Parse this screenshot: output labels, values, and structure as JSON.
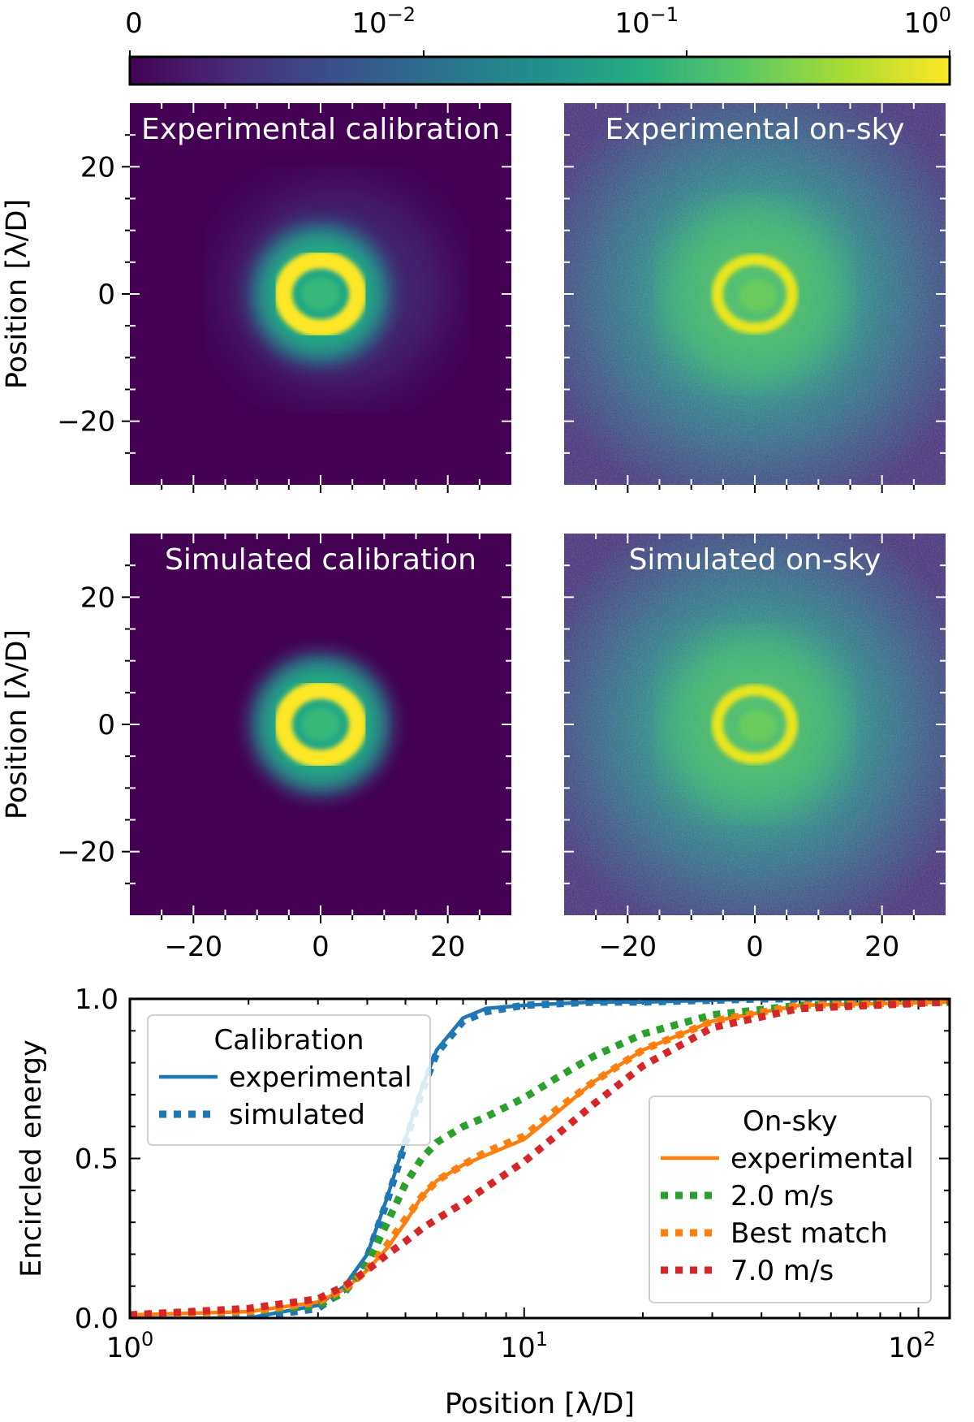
{
  "colorbar": {
    "tick_labels": [
      "0",
      "10",
      "−2",
      "10",
      "−1",
      "10",
      "0"
    ],
    "tick_values": [
      "0",
      "1e-2",
      "1e-1",
      "1e0"
    ],
    "colormap": "viridis",
    "viridis_stops": [
      "#440154",
      "#472c7a",
      "#3b518b",
      "#2c718e",
      "#21908d",
      "#27ad81",
      "#5cc863",
      "#aadc32",
      "#fde725"
    ]
  },
  "images": {
    "panels": [
      {
        "title": "Experimental calibration",
        "kind": "calibration",
        "ring_radius": 6,
        "halo_level": 0.0,
        "asymmetry": true
      },
      {
        "title": "Experimental on-sky",
        "kind": "onsky",
        "ring_radius": 6,
        "halo_level": 0.55,
        "asymmetry": false
      },
      {
        "title": "Simulated calibration",
        "kind": "calibration",
        "ring_radius": 6,
        "halo_level": 0.0,
        "asymmetry": false
      },
      {
        "title": "Simulated on-sky",
        "kind": "onsky",
        "ring_radius": 6,
        "halo_level": 0.5,
        "asymmetry": false
      }
    ],
    "axis_range": [
      -30,
      30
    ],
    "tick_labels": [
      "−20",
      "0",
      "20"
    ],
    "tick_values": [
      -20,
      0,
      20
    ],
    "ylabel": "Position [λ/D]"
  },
  "chart_data": {
    "type": "line",
    "xscale": "log",
    "xlim": [
      1,
      120
    ],
    "ylim": [
      0,
      1
    ],
    "xlabel": "Position [λ/D]",
    "ylabel": "Encircled energy",
    "x_tick_labels": [
      {
        "base": "10",
        "exp": "0"
      },
      {
        "base": "10",
        "exp": "1"
      },
      {
        "base": "10",
        "exp": "2"
      }
    ],
    "x_tick_values": [
      1,
      10,
      100
    ],
    "y_tick_labels": [
      "0.0",
      "0.5",
      "1.0"
    ],
    "y_tick_values": [
      0,
      0.5,
      1.0
    ],
    "series": [
      {
        "name": "experimental",
        "group": "Calibration",
        "color": "#1f77b4",
        "style": "solid",
        "x": [
          1,
          2,
          3,
          3.5,
          4,
          4.5,
          5,
          5.5,
          6,
          7,
          8,
          10,
          15,
          20,
          40,
          120
        ],
        "y": [
          0.0,
          0.0,
          0.04,
          0.1,
          0.2,
          0.38,
          0.56,
          0.72,
          0.84,
          0.94,
          0.97,
          0.98,
          0.99,
          0.99,
          1.0,
          1.0
        ]
      },
      {
        "name": "simulated",
        "group": "Calibration",
        "color": "#1f77b4",
        "style": "dotted",
        "x": [
          1,
          2,
          3,
          3.5,
          4,
          4.5,
          5,
          5.5,
          6,
          7,
          8,
          10,
          15,
          20,
          40,
          120
        ],
        "y": [
          0.0,
          0.0,
          0.03,
          0.09,
          0.19,
          0.37,
          0.55,
          0.71,
          0.83,
          0.93,
          0.96,
          0.98,
          0.99,
          0.99,
          1.0,
          1.0
        ]
      },
      {
        "name": "experimental",
        "group": "On-sky",
        "color": "#ff7f0e",
        "style": "solid",
        "x": [
          1,
          2,
          3,
          3.5,
          4,
          4.5,
          5,
          5.5,
          6,
          7,
          8,
          10,
          12,
          15,
          20,
          30,
          50,
          120
        ],
        "y": [
          0.01,
          0.02,
          0.05,
          0.09,
          0.15,
          0.22,
          0.3,
          0.38,
          0.43,
          0.48,
          0.51,
          0.56,
          0.64,
          0.74,
          0.84,
          0.93,
          0.98,
          0.99
        ]
      },
      {
        "name": "2.0 m/s",
        "group": "On-sky",
        "color": "#2ca02c",
        "style": "dotted",
        "x": [
          1,
          2,
          3,
          3.5,
          4,
          4.5,
          5,
          5.5,
          6,
          7,
          8,
          10,
          12,
          15,
          20,
          30,
          50,
          120
        ],
        "y": [
          0.01,
          0.02,
          0.04,
          0.08,
          0.17,
          0.3,
          0.42,
          0.5,
          0.55,
          0.6,
          0.63,
          0.69,
          0.75,
          0.82,
          0.89,
          0.95,
          0.98,
          0.99
        ]
      },
      {
        "name": "Best match",
        "group": "On-sky",
        "color": "#ff7f0e",
        "style": "dotted",
        "x": [
          1,
          2,
          3,
          3.5,
          4,
          4.5,
          5,
          5.5,
          6,
          7,
          8,
          10,
          12,
          15,
          20,
          30,
          50,
          120
        ],
        "y": [
          0.01,
          0.02,
          0.05,
          0.09,
          0.15,
          0.23,
          0.31,
          0.38,
          0.43,
          0.48,
          0.52,
          0.57,
          0.65,
          0.74,
          0.84,
          0.93,
          0.98,
          0.99
        ]
      },
      {
        "name": "7.0 m/s",
        "group": "On-sky",
        "color": "#d62728",
        "style": "dotted",
        "x": [
          1,
          2,
          3,
          3.5,
          4,
          4.5,
          5,
          5.5,
          6,
          7,
          8,
          10,
          12,
          15,
          20,
          30,
          50,
          120
        ],
        "y": [
          0.01,
          0.03,
          0.06,
          0.1,
          0.15,
          0.2,
          0.24,
          0.28,
          0.31,
          0.36,
          0.41,
          0.49,
          0.57,
          0.67,
          0.79,
          0.91,
          0.97,
          0.99
        ]
      }
    ],
    "legends": [
      {
        "title": "Calibration",
        "position": "upper-left",
        "entries": [
          "experimental",
          "simulated"
        ]
      },
      {
        "title": "On-sky",
        "position": "lower-right",
        "entries": [
          "experimental",
          "2.0 m/s",
          "Best match",
          "7.0 m/s"
        ]
      }
    ]
  }
}
